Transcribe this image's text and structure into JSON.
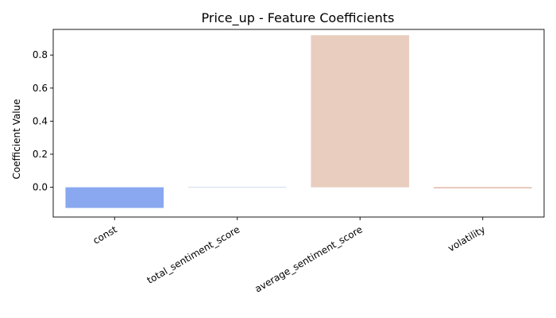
{
  "chart_data": {
    "type": "bar",
    "title": "Price_up - Feature Coefficients",
    "xlabel": "",
    "ylabel": "Coefficient Value",
    "categories": [
      "const",
      "total_sentiment_score",
      "average_sentiment_score",
      "volatility"
    ],
    "values": [
      -0.125,
      0.003,
      0.92,
      -0.005
    ],
    "colors": [
      "#8aa8f0",
      "#c9d6e9",
      "#e9cdbe",
      "#d49880"
    ],
    "ylim": [
      -0.18,
      0.955
    ],
    "yticks": [
      0.0,
      0.2,
      0.4,
      0.6,
      0.8
    ],
    "ytick_labels": [
      "0.0",
      "0.2",
      "0.4",
      "0.6",
      "0.8"
    ],
    "grid": false,
    "legend": "none"
  }
}
